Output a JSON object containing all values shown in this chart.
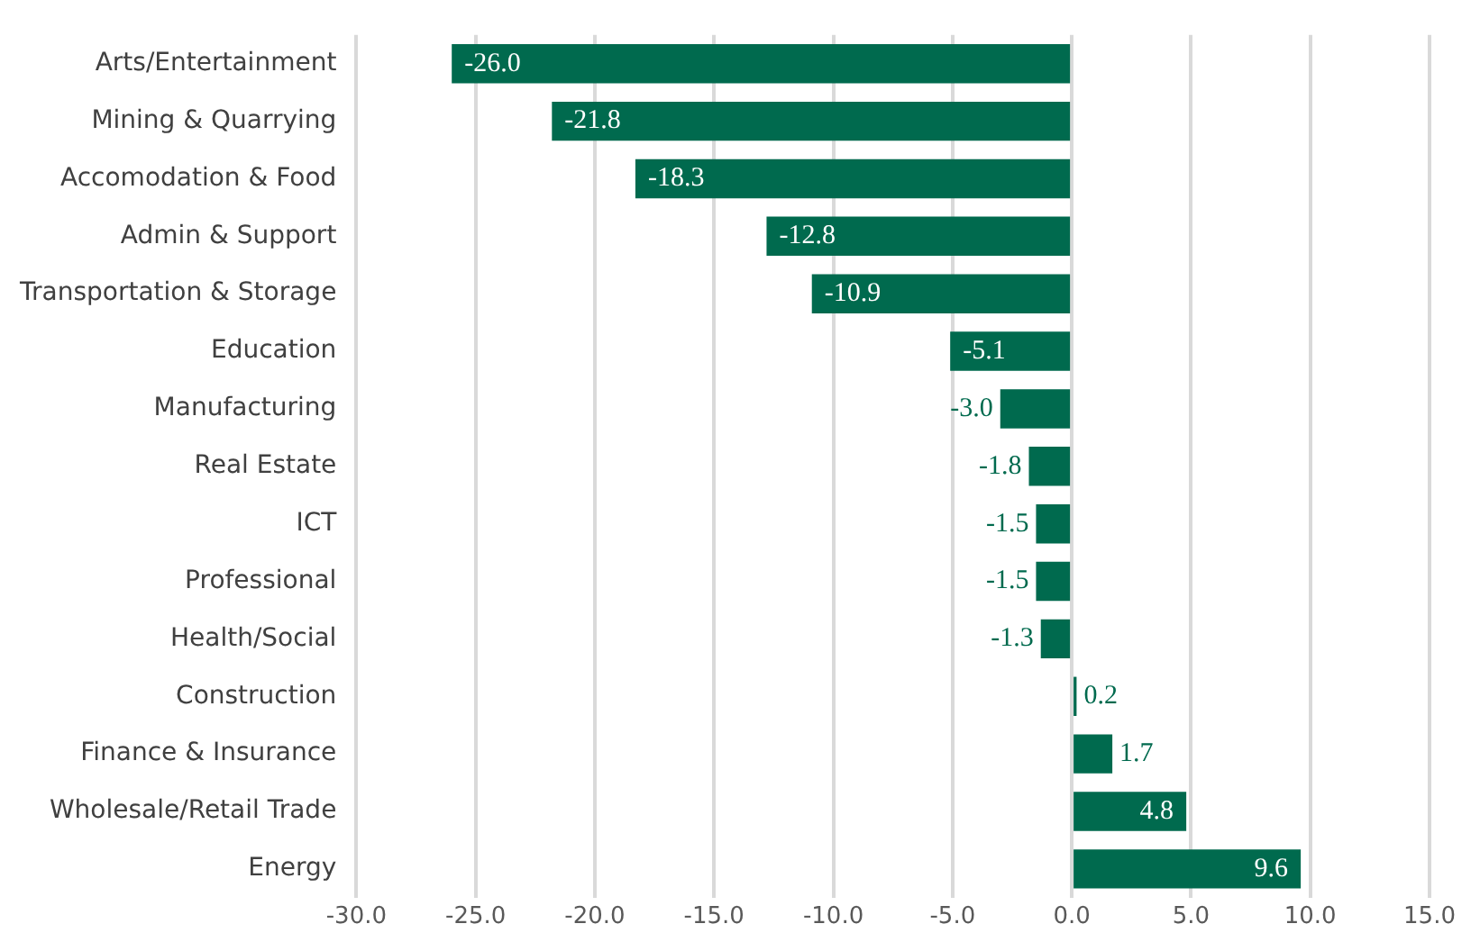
{
  "chart_data": {
    "type": "bar",
    "orientation": "horizontal",
    "categories": [
      "Arts/Entertainment",
      "Mining & Quarrying",
      "Accomodation & Food",
      "Admin & Support",
      "Transportation & Storage",
      "Education",
      "Manufacturing",
      "Real Estate",
      "ICT",
      "Professional",
      "Health/Social",
      "Construction",
      "Finance & Insurance",
      "Wholesale/Retail Trade",
      "Energy"
    ],
    "values": [
      -26.0,
      -21.8,
      -18.3,
      -12.8,
      -10.9,
      -5.1,
      -3.0,
      -1.8,
      -1.5,
      -1.5,
      -1.3,
      0.2,
      1.7,
      4.8,
      9.6
    ],
    "color": "#006a4e",
    "xlim": [
      -30,
      15
    ],
    "xticks": [
      {
        "value": -30,
        "label": "-30.0"
      },
      {
        "value": -25,
        "label": "-25.0"
      },
      {
        "value": -20,
        "label": "-20.0"
      },
      {
        "value": -15,
        "label": "-15.0"
      },
      {
        "value": -10,
        "label": "-10.0"
      },
      {
        "value": -5,
        "label": "-5.0"
      },
      {
        "value": 0,
        "label": "0.0"
      },
      {
        "value": 5,
        "label": "5.0"
      },
      {
        "value": 10,
        "label": "10.0"
      },
      {
        "value": 15,
        "label": "15.0"
      }
    ],
    "value_labels": [
      "-26.0",
      "-21.8",
      "-18.3",
      "-12.8",
      "-10.9",
      "-5.1",
      "-3.0",
      "-1.8",
      "-1.5",
      "-1.5",
      "-1.3",
      "0.2",
      "1.7",
      "4.8",
      "9.6"
    ],
    "grid": "x",
    "legend": false
  }
}
